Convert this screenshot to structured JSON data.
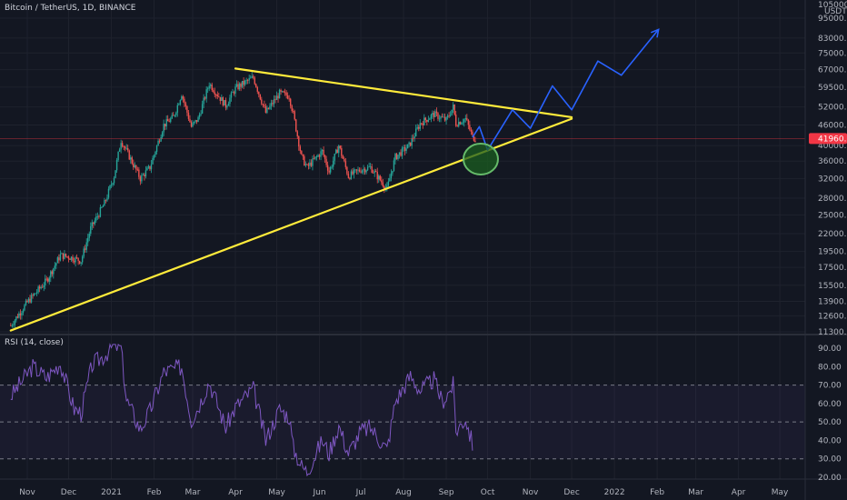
{
  "header": {
    "symbol_title": "Bitcoin / TetherUS, 1D, BINANCE",
    "rsi_title": "RSI (14, close)"
  },
  "price_axis": {
    "currency": "USDT",
    "top_label": "105000.00"
  },
  "last_price": {
    "value": 41960,
    "label": "41960.51",
    "color": "#f23645"
  },
  "colors": {
    "background": "#131722",
    "up_candle": "#26a69a",
    "down_candle": "#ef5350",
    "trendline": "#ffeb3b",
    "projection": "#2962ff",
    "target_circle_fill": "#1b5e20",
    "target_circle_stroke": "#66bb6a",
    "rsi_line": "#7e57c2",
    "rsi_band": "#7e57c2"
  },
  "chart_data": [
    {
      "type": "candlestick",
      "title": "Bitcoin / TetherUS, 1D, BINANCE",
      "y_scale": "log",
      "y_ticks": [
        11300,
        12600,
        13900,
        15500,
        17500,
        19500,
        22000,
        25000,
        28000,
        32000,
        36000,
        40000,
        46000,
        52000,
        59500,
        67000,
        75000,
        83000,
        95000
      ],
      "y_tick_labels": [
        "11300.00",
        "12600.00",
        "13900.00",
        "15500.00",
        "17500.00",
        "19500.00",
        "22000.00",
        "25000.00",
        "28000.00",
        "32000.00",
        "36000.00",
        "40000.00",
        "46000.00",
        "52000.00",
        "59500.00",
        "67000.00",
        "75000.00",
        "83000.00",
        "95000.00"
      ],
      "x_labels": [
        "Nov",
        "Dec",
        "2021",
        "Feb",
        "Mar",
        "Apr",
        "May",
        "Jun",
        "Jul",
        "Aug",
        "Sep",
        "Oct",
        "Nov",
        "Dec",
        "2022",
        "Feb",
        "Mar",
        "Apr",
        "May"
      ],
      "x_label_dates": [
        "2020-11-01",
        "2020-12-01",
        "2021-01-01",
        "2021-02-01",
        "2021-03-01",
        "2021-04-01",
        "2021-05-01",
        "2021-06-01",
        "2021-07-01",
        "2021-08-01",
        "2021-09-01",
        "2021-10-01",
        "2021-11-01",
        "2021-12-01",
        "2022-01-01",
        "2022-02-01",
        "2022-03-01",
        "2022-04-01",
        "2022-05-01"
      ],
      "close_path": [
        {
          "date": "2020-10-20",
          "close": 11800
        },
        {
          "date": "2020-11-01",
          "close": 13800
        },
        {
          "date": "2020-11-15",
          "close": 16000
        },
        {
          "date": "2020-11-25",
          "close": 19000
        },
        {
          "date": "2020-12-01",
          "close": 18800
        },
        {
          "date": "2020-12-10",
          "close": 18300
        },
        {
          "date": "2020-12-17",
          "close": 22800
        },
        {
          "date": "2020-12-27",
          "close": 27000
        },
        {
          "date": "2021-01-03",
          "close": 32500
        },
        {
          "date": "2021-01-08",
          "close": 41500
        },
        {
          "date": "2021-01-15",
          "close": 36500
        },
        {
          "date": "2021-01-22",
          "close": 32000
        },
        {
          "date": "2021-01-29",
          "close": 34500
        },
        {
          "date": "2021-02-08",
          "close": 46000
        },
        {
          "date": "2021-02-15",
          "close": 48500
        },
        {
          "date": "2021-02-21",
          "close": 57000
        },
        {
          "date": "2021-02-28",
          "close": 45500
        },
        {
          "date": "2021-03-05",
          "close": 48000
        },
        {
          "date": "2021-03-13",
          "close": 61000
        },
        {
          "date": "2021-03-25",
          "close": 52500
        },
        {
          "date": "2021-04-01",
          "close": 59000
        },
        {
          "date": "2021-04-14",
          "close": 63500
        },
        {
          "date": "2021-04-23",
          "close": 50000
        },
        {
          "date": "2021-05-03",
          "close": 57000
        },
        {
          "date": "2021-05-10",
          "close": 56000
        },
        {
          "date": "2021-05-13",
          "close": 49500
        },
        {
          "date": "2021-05-19",
          "close": 37000
        },
        {
          "date": "2021-05-23",
          "close": 34500
        },
        {
          "date": "2021-06-03",
          "close": 38500
        },
        {
          "date": "2021-06-08",
          "close": 33500
        },
        {
          "date": "2021-06-15",
          "close": 40000
        },
        {
          "date": "2021-06-22",
          "close": 32500
        },
        {
          "date": "2021-07-01",
          "close": 34000
        },
        {
          "date": "2021-07-08",
          "close": 34500
        },
        {
          "date": "2021-07-20",
          "close": 29800
        },
        {
          "date": "2021-07-26",
          "close": 37000
        },
        {
          "date": "2021-08-05",
          "close": 40000
        },
        {
          "date": "2021-08-13",
          "close": 46500
        },
        {
          "date": "2021-08-23",
          "close": 49500
        },
        {
          "date": "2021-09-01",
          "close": 47500
        },
        {
          "date": "2021-09-06",
          "close": 52000
        },
        {
          "date": "2021-09-08",
          "close": 46500
        },
        {
          "date": "2021-09-15",
          "close": 48000
        },
        {
          "date": "2021-09-20",
          "close": 42500
        },
        {
          "date": "2021-09-22",
          "close": 41960
        }
      ],
      "last_price": 41960.51,
      "trendlines": [
        {
          "name": "upper",
          "from": {
            "date": "2021-04-01",
            "price": 67500
          },
          "to": {
            "date": "2021-12-01",
            "price": 48500
          }
        },
        {
          "name": "lower",
          "from": {
            "date": "2020-10-20",
            "price": 11400
          },
          "to": {
            "date": "2021-12-01",
            "price": 48000
          }
        }
      ],
      "projection_path": [
        {
          "date": "2021-09-20",
          "price": 42300
        },
        {
          "date": "2021-09-25",
          "price": 45500
        },
        {
          "date": "2021-10-01",
          "price": 38800
        },
        {
          "date": "2021-10-19",
          "price": 51000
        },
        {
          "date": "2021-11-01",
          "price": 45000
        },
        {
          "date": "2021-11-17",
          "price": 60000
        },
        {
          "date": "2021-12-01",
          "price": 51000
        },
        {
          "date": "2021-12-20",
          "price": 71000
        },
        {
          "date": "2022-01-06",
          "price": 64500
        },
        {
          "date": "2022-02-02",
          "price": 88000
        }
      ],
      "target_zone": {
        "date": "2021-09-26",
        "price": 36500
      }
    },
    {
      "type": "line",
      "title": "RSI (14, close)",
      "y_ticks": [
        20,
        30,
        40,
        50,
        60,
        70,
        80,
        90
      ],
      "y_tick_labels": [
        "20.00",
        "30.00",
        "40.00",
        "50.00",
        "60.00",
        "70.00",
        "80.00",
        "90.00"
      ],
      "bands": [
        70,
        50,
        30
      ],
      "series": [
        {
          "points": [
            {
              "date": "2020-10-20",
              "value": 64
            },
            {
              "date": "2020-11-05",
              "value": 80
            },
            {
              "date": "2020-11-15",
              "value": 74
            },
            {
              "date": "2020-11-25",
              "value": 82
            },
            {
              "date": "2020-12-05",
              "value": 57
            },
            {
              "date": "2020-12-10",
              "value": 55
            },
            {
              "date": "2020-12-18",
              "value": 81
            },
            {
              "date": "2020-12-27",
              "value": 86
            },
            {
              "date": "2021-01-03",
              "value": 92
            },
            {
              "date": "2021-01-08",
              "value": 90
            },
            {
              "date": "2021-01-12",
              "value": 62
            },
            {
              "date": "2021-01-22",
              "value": 46
            },
            {
              "date": "2021-01-29",
              "value": 56
            },
            {
              "date": "2021-02-08",
              "value": 77
            },
            {
              "date": "2021-02-21",
              "value": 80
            },
            {
              "date": "2021-02-28",
              "value": 51
            },
            {
              "date": "2021-03-05",
              "value": 58
            },
            {
              "date": "2021-03-13",
              "value": 72
            },
            {
              "date": "2021-03-25",
              "value": 47
            },
            {
              "date": "2021-04-01",
              "value": 58
            },
            {
              "date": "2021-04-14",
              "value": 68
            },
            {
              "date": "2021-04-23",
              "value": 40
            },
            {
              "date": "2021-05-03",
              "value": 57
            },
            {
              "date": "2021-05-10",
              "value": 53
            },
            {
              "date": "2021-05-13",
              "value": 36
            },
            {
              "date": "2021-05-19",
              "value": 26
            },
            {
              "date": "2021-05-23",
              "value": 23
            },
            {
              "date": "2021-06-03",
              "value": 40
            },
            {
              "date": "2021-06-08",
              "value": 33
            },
            {
              "date": "2021-06-15",
              "value": 48
            },
            {
              "date": "2021-06-22",
              "value": 33
            },
            {
              "date": "2021-07-01",
              "value": 45
            },
            {
              "date": "2021-07-08",
              "value": 47
            },
            {
              "date": "2021-07-20",
              "value": 35
            },
            {
              "date": "2021-07-26",
              "value": 61
            },
            {
              "date": "2021-08-02",
              "value": 70
            },
            {
              "date": "2021-08-06",
              "value": 75
            },
            {
              "date": "2021-08-13",
              "value": 67
            },
            {
              "date": "2021-08-23",
              "value": 73
            },
            {
              "date": "2021-08-29",
              "value": 61
            },
            {
              "date": "2021-09-01",
              "value": 64
            },
            {
              "date": "2021-09-06",
              "value": 70
            },
            {
              "date": "2021-09-08",
              "value": 45
            },
            {
              "date": "2021-09-15",
              "value": 52
            },
            {
              "date": "2021-09-20",
              "value": 38
            }
          ]
        }
      ]
    }
  ]
}
